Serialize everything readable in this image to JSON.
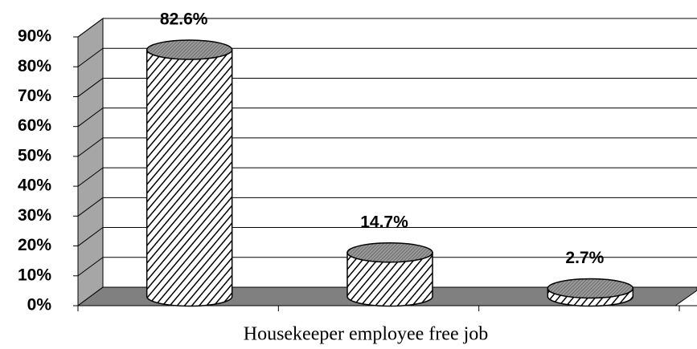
{
  "chart_data": {
    "type": "bar",
    "x_label": "Housekeeper employee free job",
    "categories": [
      null,
      null,
      null
    ],
    "values": [
      82.6,
      14.7,
      2.7
    ],
    "value_labels": [
      "82.6%",
      "14.7%",
      "2.7%"
    ],
    "ylim": [
      0,
      90
    ],
    "yticks": [
      {
        "value": 0,
        "label": "0%"
      },
      {
        "value": 10,
        "label": "10%"
      },
      {
        "value": 20,
        "label": "20%"
      },
      {
        "value": 30,
        "label": "30%"
      },
      {
        "value": 40,
        "label": "40%"
      },
      {
        "value": 50,
        "label": "50%"
      },
      {
        "value": 60,
        "label": "60%"
      },
      {
        "value": 70,
        "label": "70%"
      },
      {
        "value": 80,
        "label": "80%"
      },
      {
        "value": 90,
        "label": "90%"
      }
    ],
    "grid": true
  }
}
